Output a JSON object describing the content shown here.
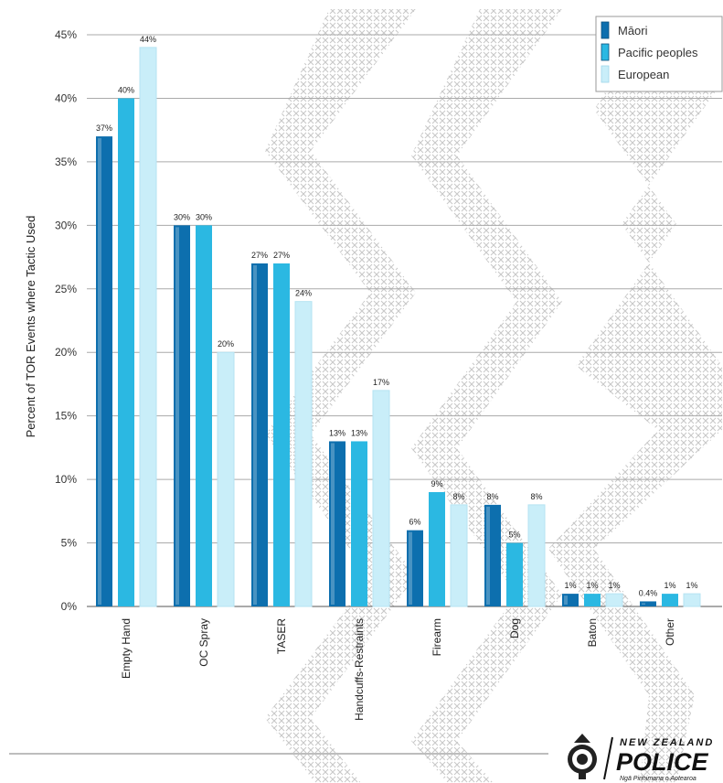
{
  "chart_data": {
    "type": "bar",
    "title": "",
    "xlabel": "",
    "ylabel": "Percent of TOR Events where Tactic Used",
    "ylim": [
      0,
      45
    ],
    "yticks": [
      "0%",
      "5%",
      "10%",
      "15%",
      "20%",
      "25%",
      "30%",
      "35%",
      "40%",
      "45%"
    ],
    "grid": true,
    "legend_position": "top-right",
    "categories": [
      "Empty Hand",
      "OC Spray",
      "TASER",
      "Handcuffs-Restraints",
      "Firearm",
      "Dog",
      "Baton",
      "Other"
    ],
    "series": [
      {
        "name": "Māori",
        "color": "#0d6fae",
        "values": [
          37,
          30,
          27,
          13,
          6,
          8,
          1,
          0.4
        ],
        "labels": [
          "37%",
          "30%",
          "27%",
          "13%",
          "6%",
          "8%",
          "1%",
          "0.4%"
        ]
      },
      {
        "name": "Pacific peoples",
        "color": "#2bb8e2",
        "values": [
          40,
          30,
          27,
          13,
          9,
          5,
          1,
          1
        ],
        "labels": [
          "40%",
          "30%",
          "27%",
          "13%",
          "9%",
          "5%",
          "1%",
          "1%"
        ]
      },
      {
        "name": "European",
        "color": "#c9eef9",
        "values": [
          44,
          20,
          24,
          17,
          8,
          8,
          1,
          1
        ],
        "labels": [
          "44%",
          "20%",
          "24%",
          "17%",
          "8%",
          "8%",
          "1%",
          "1%"
        ]
      }
    ]
  },
  "logo": {
    "line1": "NEW ZEALAND",
    "line2": "POLICE",
    "line3": "Ngā Pirihimana o Aotearoa"
  }
}
